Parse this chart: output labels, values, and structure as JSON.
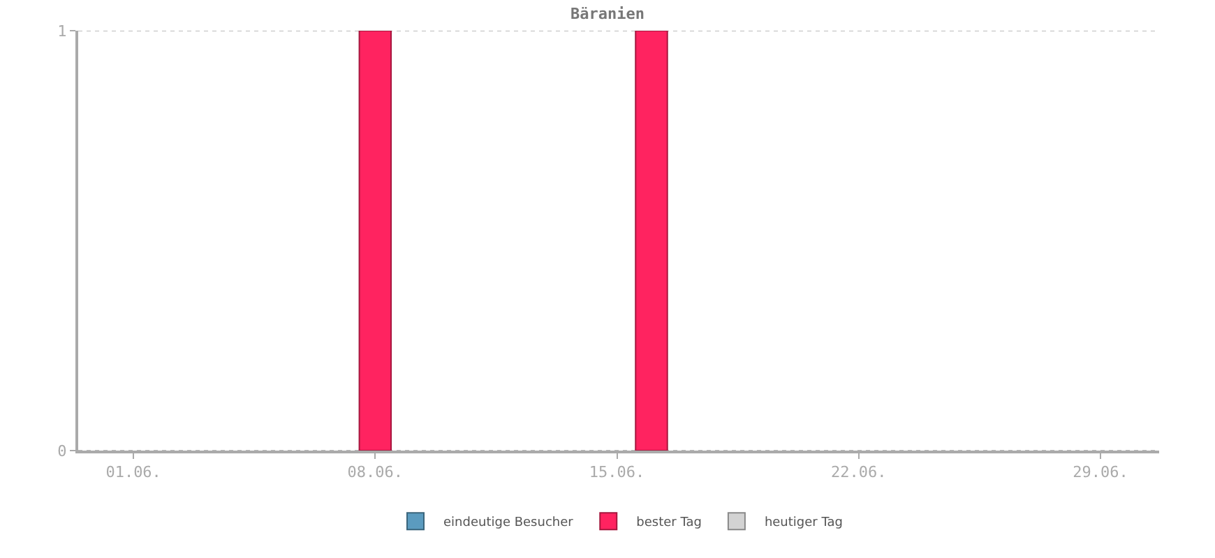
{
  "chart_data": {
    "type": "bar",
    "title": "Bäranien",
    "categories": [
      "01.06.",
      null,
      null,
      null,
      null,
      null,
      null,
      "08.06.",
      null,
      null,
      null,
      null,
      null,
      null,
      "15.06.",
      null,
      null,
      null,
      null,
      null,
      null,
      "22.06.",
      null,
      null,
      null,
      null,
      null,
      null,
      "29.06.",
      null
    ],
    "series": [
      {
        "name": "eindeutige Besucher",
        "color": "#5b9bbf",
        "values": [
          null,
          null,
          null,
          null,
          null,
          null,
          null,
          null,
          null,
          null,
          null,
          null,
          null,
          null,
          null,
          null,
          null,
          null,
          null,
          null,
          null,
          null,
          null,
          null,
          null,
          null,
          null,
          null,
          null,
          null
        ]
      },
      {
        "name": "bester Tag",
        "color": "#ff2360",
        "values": [
          null,
          null,
          null,
          null,
          null,
          null,
          null,
          1,
          null,
          null,
          null,
          null,
          null,
          null,
          null,
          1,
          null,
          null,
          null,
          null,
          null,
          null,
          null,
          null,
          null,
          null,
          null,
          null,
          null,
          null
        ]
      },
      {
        "name": "heutiger Tag",
        "color": "#d3d3d3",
        "values": [
          null,
          null,
          null,
          null,
          null,
          null,
          null,
          null,
          null,
          null,
          null,
          null,
          null,
          null,
          null,
          null,
          null,
          null,
          null,
          null,
          null,
          null,
          null,
          null,
          null,
          null,
          null,
          null,
          null,
          null
        ]
      }
    ],
    "ylim": [
      0,
      1
    ],
    "yticks": [
      0,
      1
    ],
    "grid": "y",
    "legend": "bottom"
  }
}
